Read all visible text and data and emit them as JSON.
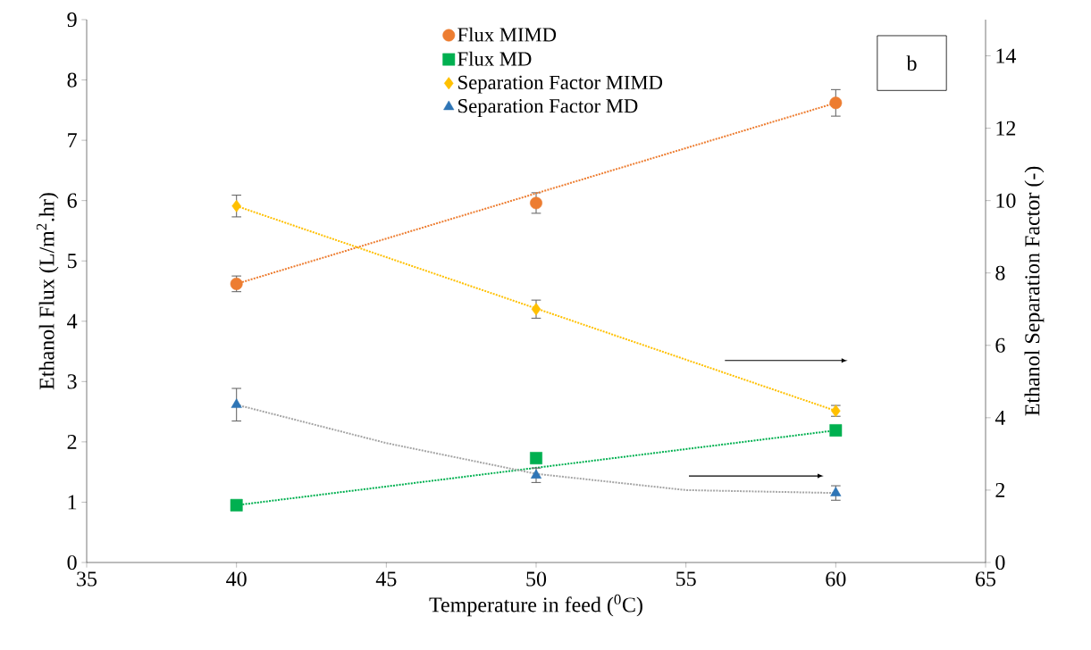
{
  "chart_data": {
    "type": "scatter",
    "xlabel": "Temperature in feed ($^{0}$C)",
    "ylabel": "Ethanol Flux (L/m$^{2}$.hr)",
    "y2label": "Ethanol  Separation Factor (-)",
    "xlim": [
      35,
      65
    ],
    "xticks": [
      35,
      40,
      45,
      50,
      55,
      60,
      65
    ],
    "ylim": [
      0,
      9
    ],
    "yticks": [
      0,
      1,
      2,
      3,
      4,
      5,
      6,
      7,
      8,
      9
    ],
    "y2lim": [
      0,
      15
    ],
    "y2ticks": [
      0,
      2,
      4,
      6,
      8,
      10,
      12,
      14
    ],
    "legend": "top",
    "annotations": [
      "b"
    ],
    "series": [
      {
        "name": "Flux MIMD",
        "color": "#ed7d31",
        "marker": "circle",
        "x": [
          40,
          50,
          60
        ],
        "values": [
          4.62,
          5.96,
          7.62
        ],
        "errors": [
          0.13,
          0.17,
          0.22
        ]
      },
      {
        "name": "Flux MD",
        "color": "#00b050",
        "marker": "square",
        "x": [
          40,
          50,
          60
        ],
        "values": [
          0.95,
          1.73,
          2.19
        ]
      },
      {
        "name": "Separation Factor MIMD",
        "color": "#ffc000",
        "marker": "diamond",
        "axis": "y2",
        "x": [
          40,
          50,
          60
        ],
        "values": [
          9.85,
          7.0,
          4.19
        ],
        "errors": [
          0.3,
          0.25,
          0.15
        ]
      },
      {
        "name": "Separation Factor MD",
        "color": "#2e75b6",
        "marker": "triangle",
        "axis": "y2",
        "x": [
          40,
          50,
          60
        ],
        "values": [
          4.36,
          2.41,
          1.92
        ],
        "errors": [
          0.45,
          0.2,
          0.2
        ]
      },
      {
        "type": "line",
        "color": "#ed7d31",
        "line_style": "dotted",
        "x": [
          40,
          60
        ],
        "values": [
          4.62,
          7.62
        ]
      },
      {
        "type": "line",
        "color": "#00b050",
        "line_style": "dotted",
        "x": [
          40,
          60
        ],
        "values": [
          0.95,
          2.19
        ]
      },
      {
        "type": "line",
        "color": "#ffc000",
        "line_style": "dotted",
        "axis": "y2",
        "x": [
          40,
          60
        ],
        "values": [
          9.85,
          4.19
        ]
      },
      {
        "type": "line",
        "color": "#a5a5a5",
        "line_style": "dotted",
        "axis": "y2",
        "x": [
          40,
          45,
          50,
          55,
          60
        ],
        "values": [
          4.36,
          3.3,
          2.45,
          2.0,
          1.92
        ]
      }
    ]
  }
}
